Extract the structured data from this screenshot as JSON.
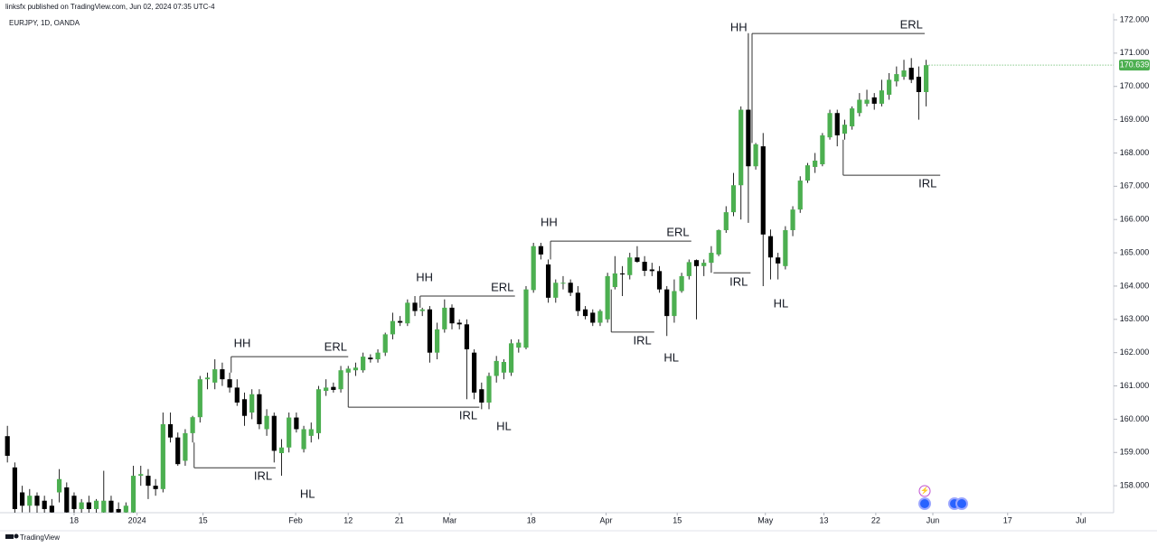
{
  "header": {
    "published": "linksfx published on TradingView.com, Jun 02, 2024 07:35 UTC-4"
  },
  "footer": {
    "brand": "TradingView"
  },
  "chart_data": {
    "type": "candlestick",
    "title": "EURJPY, 1D, OANDA",
    "up_color": "#4caf50",
    "down_color": "#000000",
    "wick_color": "#222222",
    "level_color": "#333333",
    "open": [
      159.49,
      158.55,
      157.8,
      157.4,
      157.7,
      157.55,
      157.4,
      157.8,
      157.95,
      157.7,
      157.3,
      157.5,
      157.3,
      157.2,
      157.55,
      157.3,
      157.2,
      157.2,
      158.3,
      158.3,
      158.0,
      157.9,
      159.85,
      159.45,
      158.75,
      159.58,
      160.06,
      161.2,
      161.1,
      161.5,
      161.2,
      160.95,
      160.6,
      160.2,
      160.75,
      159.7,
      160.1,
      158.98,
      159.15,
      160.05,
      159.1,
      159.5,
      159.58,
      160.85,
      160.97,
      160.9,
      161.4,
      161.47,
      161.47,
      161.85,
      161.8,
      162.0,
      162.55,
      162.95,
      162.88,
      163.5,
      163.25,
      163.3,
      162.0,
      162.7,
      163.35,
      162.9,
      162.85,
      162.0,
      160.9,
      160.5,
      161.3,
      161.4,
      161.4,
      162.15,
      162.15,
      163.88,
      165.2,
      164.65,
      163.65,
      164.1,
      164.1,
      163.8,
      163.3,
      163.2,
      162.9,
      163.0,
      163.97,
      164.38,
      164.33,
      164.86,
      164.73,
      164.5,
      164.45,
      163.9,
      163.1,
      163.85,
      164.3,
      164.78,
      164.6,
      164.7,
      164.95,
      165.68,
      166.22,
      167.03,
      169.3,
      167.6,
      168.2,
      165.5,
      164.86,
      164.6,
      165.68,
      166.3,
      167.17,
      167.58,
      167.66,
      168.47,
      169.2,
      168.58,
      168.8,
      169.2,
      169.48,
      169.67,
      169.48,
      169.75,
      170.15,
      170.29,
      170.56,
      170.29,
      169.83
    ],
    "high": [
      159.8,
      158.7,
      158.0,
      157.9,
      157.8,
      157.7,
      157.6,
      158.5,
      158.1,
      157.8,
      157.6,
      157.7,
      157.6,
      158.45,
      157.7,
      157.5,
      157.5,
      158.6,
      158.6,
      158.5,
      158.2,
      160.2,
      160.2,
      159.6,
      159.7,
      160.1,
      161.3,
      161.4,
      161.8,
      161.7,
      161.4,
      161.2,
      160.8,
      160.9,
      160.9,
      160.3,
      160.2,
      159.4,
      160.2,
      160.2,
      159.8,
      159.9,
      161.0,
      161.2,
      161.1,
      161.6,
      161.6,
      161.7,
      162.0,
      161.95,
      162.1,
      162.6,
      163.2,
      163.1,
      163.6,
      163.7,
      163.35,
      163.4,
      162.9,
      163.6,
      163.45,
      163.0,
      163.0,
      162.1,
      161.1,
      161.4,
      161.9,
      161.8,
      162.4,
      162.4,
      164.0,
      165.3,
      165.3,
      164.8,
      164.2,
      164.3,
      164.2,
      164.0,
      163.4,
      163.3,
      163.3,
      164.4,
      164.9,
      164.6,
      165.0,
      165.2,
      164.9,
      164.7,
      164.6,
      164.0,
      164.2,
      164.4,
      164.8,
      164.8,
      164.8,
      165.2,
      165.7,
      166.4,
      167.4,
      169.4,
      171.6,
      168.3,
      168.6,
      165.7,
      165.0,
      165.8,
      166.4,
      167.3,
      167.7,
      168.0,
      168.6,
      169.3,
      169.3,
      169.0,
      169.4,
      169.8,
      169.9,
      169.8,
      170.2,
      170.4,
      170.6,
      170.8,
      170.85,
      170.6,
      170.8
    ],
    "low": [
      158.7,
      157.0,
      157.2,
      157.2,
      157.1,
      157.0,
      157.0,
      157.5,
      157.0,
      157.0,
      157.0,
      157.1,
      157.1,
      157.1,
      157.0,
      157.0,
      157.0,
      157.1,
      158.0,
      157.6,
      157.7,
      157.8,
      159.3,
      158.6,
      158.6,
      159.3,
      159.9,
      160.9,
      160.9,
      161.0,
      160.8,
      160.4,
      159.8,
      160.0,
      159.7,
      159.5,
      158.7,
      158.3,
      159.0,
      159.6,
      159.0,
      159.3,
      159.4,
      160.7,
      160.8,
      160.8,
      161.3,
      161.3,
      161.4,
      161.7,
      161.7,
      161.9,
      162.4,
      162.8,
      162.8,
      163.1,
      163.1,
      161.7,
      161.8,
      162.6,
      162.7,
      162.7,
      160.6,
      160.6,
      160.3,
      160.3,
      161.1,
      161.2,
      161.3,
      162.0,
      162.1,
      163.8,
      164.8,
      163.5,
      163.5,
      163.9,
      163.7,
      163.1,
      163.0,
      162.8,
      162.8,
      162.9,
      163.9,
      163.7,
      164.2,
      164.7,
      164.3,
      164.3,
      163.8,
      162.5,
      162.9,
      163.8,
      164.2,
      163.0,
      164.3,
      164.4,
      164.9,
      165.6,
      166.1,
      166.0,
      165.9,
      167.5,
      164.0,
      164.2,
      164.2,
      164.5,
      165.5,
      166.2,
      167.1,
      167.4,
      167.6,
      168.4,
      168.2,
      168.4,
      168.7,
      169.1,
      169.4,
      169.3,
      169.4,
      169.6,
      170.0,
      170.2,
      170.1,
      169.0,
      169.4
    ],
    "close": [
      158.9,
      157.3,
      157.4,
      157.7,
      157.4,
      157.3,
      157.2,
      158.2,
      157.2,
      157.3,
      157.5,
      157.3,
      157.55,
      157.55,
      157.2,
      157.2,
      157.4,
      158.3,
      158.35,
      158.0,
      157.9,
      159.85,
      159.45,
      158.65,
      159.58,
      160.06,
      161.2,
      161.25,
      161.5,
      161.2,
      160.95,
      160.5,
      160.1,
      160.75,
      159.85,
      160.1,
      159.05,
      159.15,
      160.05,
      159.7,
      159.7,
      159.7,
      160.9,
      160.95,
      160.88,
      161.47,
      161.52,
      161.55,
      161.88,
      161.8,
      162.0,
      162.55,
      162.95,
      162.9,
      163.5,
      163.25,
      163.3,
      162.0,
      162.7,
      163.35,
      162.88,
      162.85,
      162.1,
      160.8,
      160.5,
      161.3,
      161.75,
      161.72,
      162.28,
      162.3,
      163.9,
      165.2,
      164.95,
      163.65,
      164.1,
      164.1,
      163.8,
      163.25,
      163.1,
      162.9,
      163.25,
      164.3,
      164.38,
      164.35,
      164.86,
      164.73,
      164.46,
      164.45,
      163.9,
      163.1,
      163.85,
      164.3,
      164.72,
      164.6,
      164.7,
      165.0,
      165.68,
      166.22,
      167.03,
      169.3,
      167.6,
      168.26,
      165.55,
      164.86,
      164.68,
      165.68,
      166.3,
      167.17,
      167.63,
      167.77,
      168.53,
      169.2,
      168.53,
      168.85,
      169.34,
      169.6,
      169.6,
      169.48,
      169.88,
      170.2,
      170.37,
      170.48,
      170.2,
      169.83,
      170.639
    ],
    "last_label": "170.639",
    "xlim": [
      -1,
      149.3
    ],
    "ylim": [
      157.19,
      172.19
    ],
    "xticks": [
      {
        "value": 9,
        "label": "18"
      },
      {
        "value": 17.5,
        "label": "2024"
      },
      {
        "value": 26.4,
        "label": "15"
      },
      {
        "value": 38.9,
        "label": "Feb"
      },
      {
        "value": 46,
        "label": "12"
      },
      {
        "value": 52.9,
        "label": "21"
      },
      {
        "value": 59.7,
        "label": "Mar"
      },
      {
        "value": 70.7,
        "label": "18"
      },
      {
        "value": 80.8,
        "label": "Apr"
      },
      {
        "value": 90.4,
        "label": "15"
      },
      {
        "value": 102.3,
        "label": "May"
      },
      {
        "value": 110.2,
        "label": "13"
      },
      {
        "value": 117.2,
        "label": "22"
      },
      {
        "value": 124.9,
        "label": "Jun"
      },
      {
        "value": 135,
        "label": "17"
      },
      {
        "value": 144.9,
        "label": "Jul"
      }
    ],
    "yticks": [
      {
        "value": 158,
        "label": "158.000"
      },
      {
        "value": 159,
        "label": "159.000"
      },
      {
        "value": 160,
        "label": "160.000"
      },
      {
        "value": 161,
        "label": "161.000"
      },
      {
        "value": 162,
        "label": "162.000"
      },
      {
        "value": 163,
        "label": "163.000"
      },
      {
        "value": 164,
        "label": "164.000"
      },
      {
        "value": 165,
        "label": "165.000"
      },
      {
        "value": 166,
        "label": "166.000"
      },
      {
        "value": 167,
        "label": "167.000"
      },
      {
        "value": 168,
        "label": "168.000"
      },
      {
        "value": 169,
        "label": "169.000"
      },
      {
        "value": 170,
        "label": "170.000"
      },
      {
        "value": 171,
        "label": "171.000"
      },
      {
        "value": 172,
        "label": "172.000"
      }
    ],
    "levels": [
      {
        "value": 161.88,
        "from": 30.2,
        "to": 46.0
      },
      {
        "value": 158.54,
        "from": 25.2,
        "to": 36.2
      },
      {
        "value": 163.7,
        "from": 55.7,
        "to": 68.5
      },
      {
        "value": 160.36,
        "from": 46.0,
        "to": 63.7
      },
      {
        "value": 165.35,
        "from": 73.3,
        "to": 92.3
      },
      {
        "value": 162.62,
        "from": 81.5,
        "to": 87.3
      },
      {
        "value": 171.59,
        "from": 100.5,
        "to": 123.8
      },
      {
        "value": 164.4,
        "from": 95.3,
        "to": 100.3
      },
      {
        "value": 167.33,
        "from": 112.8,
        "to": 125.9
      }
    ],
    "labels": [
      {
        "text": "HH",
        "x": 31.7,
        "y": 162.26
      },
      {
        "text": "ERL",
        "x": 44.3,
        "y": 162.15
      },
      {
        "text": "IRL",
        "x": 34.5,
        "y": 158.27
      },
      {
        "text": "HL",
        "x": 40.5,
        "y": 157.73
      },
      {
        "text": "HH",
        "x": 56.3,
        "y": 164.24
      },
      {
        "text": "ERL",
        "x": 66.8,
        "y": 163.94
      },
      {
        "text": "IRL",
        "x": 62.2,
        "y": 160.09
      },
      {
        "text": "HL",
        "x": 67.0,
        "y": 159.76
      },
      {
        "text": "HH",
        "x": 73.1,
        "y": 165.9
      },
      {
        "text": "ERL",
        "x": 90.5,
        "y": 165.6
      },
      {
        "text": "IRL",
        "x": 85.7,
        "y": 162.34
      },
      {
        "text": "HL",
        "x": 89.6,
        "y": 161.83
      },
      {
        "text": "HH",
        "x": 98.7,
        "y": 171.76
      },
      {
        "text": "ERL",
        "x": 122.0,
        "y": 171.84
      },
      {
        "text": "IRL",
        "x": 98.7,
        "y": 164.11
      },
      {
        "text": "HL",
        "x": 104.4,
        "y": 163.45
      },
      {
        "text": "IRL",
        "x": 124.2,
        "y": 167.06
      }
    ]
  }
}
